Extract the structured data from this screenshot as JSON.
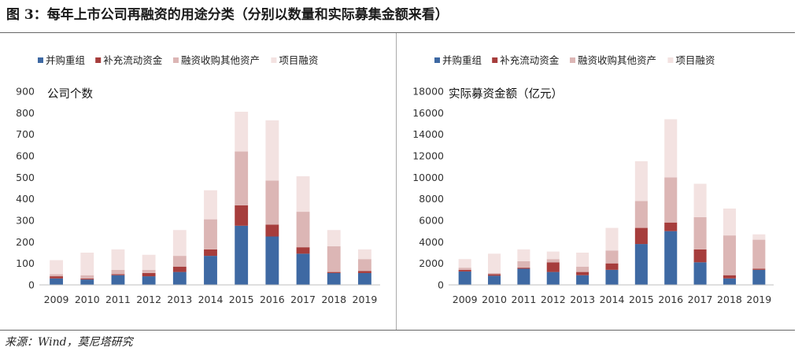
{
  "figure": {
    "title": "图 3：每年上市公司再融资的用途分类（分别以数量和实际募集金额来看）",
    "source": "来源：Wind，莫尼塔研究"
  },
  "colors": {
    "merger": "#3e69a3",
    "working_capital": "#a63d3c",
    "acquire_assets": "#dcb6b5",
    "project": "#f3e2e1"
  },
  "chart_data": [
    {
      "type": "bar",
      "stacked": true,
      "title": "公司个数",
      "categories": [
        "2009",
        "2010",
        "2011",
        "2012",
        "2013",
        "2014",
        "2015",
        "2016",
        "2017",
        "2018",
        "2019"
      ],
      "series": [
        {
          "name": "并购重组",
          "values": [
            30,
            25,
            45,
            40,
            60,
            135,
            275,
            225,
            145,
            55,
            55
          ]
        },
        {
          "name": "补充流动资金",
          "values": [
            10,
            5,
            5,
            15,
            25,
            30,
            95,
            55,
            30,
            5,
            10
          ]
        },
        {
          "name": "融资收购其他资产",
          "values": [
            10,
            15,
            20,
            15,
            50,
            140,
            250,
            205,
            165,
            120,
            55
          ]
        },
        {
          "name": "项目融资",
          "values": [
            65,
            105,
            95,
            70,
            120,
            135,
            185,
            280,
            165,
            75,
            45
          ]
        }
      ],
      "ylim": [
        0,
        900
      ],
      "yticks": [
        0,
        100,
        200,
        300,
        400,
        500,
        600,
        700,
        800,
        900
      ],
      "legend": "top",
      "grid": false
    },
    {
      "type": "bar",
      "stacked": true,
      "title": "实际募资金额（亿元）",
      "categories": [
        "2009",
        "2010",
        "2011",
        "2012",
        "2013",
        "2014",
        "2015",
        "2016",
        "2017",
        "2018",
        "2019"
      ],
      "series": [
        {
          "name": "并购重组",
          "values": [
            1250,
            850,
            1500,
            1200,
            900,
            1400,
            3800,
            5000,
            2100,
            600,
            1400
          ]
        },
        {
          "name": "补充流动资金",
          "values": [
            150,
            150,
            100,
            900,
            300,
            600,
            1500,
            800,
            1200,
            300,
            100
          ]
        },
        {
          "name": "融资收购其他资产",
          "values": [
            200,
            100,
            600,
            300,
            500,
            1200,
            2500,
            4200,
            3000,
            3700,
            2700
          ]
        },
        {
          "name": "项目融资",
          "values": [
            800,
            1800,
            1100,
            700,
            1300,
            2100,
            3700,
            5400,
            3100,
            2500,
            500
          ]
        }
      ],
      "ylim": [
        0,
        18000
      ],
      "yticks": [
        0,
        2000,
        4000,
        6000,
        8000,
        10000,
        12000,
        14000,
        16000,
        18000
      ],
      "legend": "top",
      "grid": false
    }
  ]
}
